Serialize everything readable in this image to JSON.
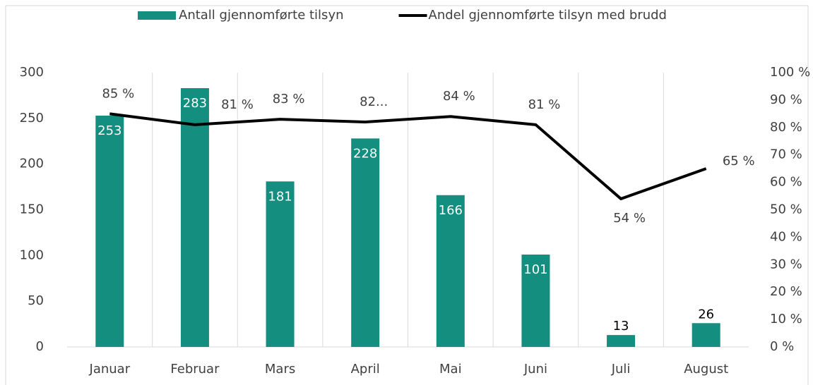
{
  "chart_data": {
    "type": "bar-line",
    "categories": [
      "Januar",
      "Februar",
      "Mars",
      "April",
      "Mai",
      "Juni",
      "Juli",
      "August"
    ],
    "series": [
      {
        "name": "Antall gjennomførte tilsyn",
        "type": "bar",
        "color": "#138e7f",
        "values": [
          253,
          283,
          181,
          228,
          166,
          101,
          13,
          26
        ]
      },
      {
        "name": "Andel gjennomførte tilsyn med brudd",
        "type": "line",
        "color": "#000000",
        "axis": "y2",
        "values": [
          85,
          81,
          83,
          82,
          84,
          81,
          54,
          65
        ],
        "value_labels": [
          "85 %",
          "81 %",
          "83 %",
          "82...",
          "84 %",
          "81 %",
          "54 %",
          "65 %"
        ]
      }
    ],
    "ylim": [
      0,
      300
    ],
    "yticks": [
      0,
      50,
      100,
      150,
      200,
      250,
      300
    ],
    "y2lim": [
      0,
      100
    ],
    "y2ticks": [
      {
        "value": 0,
        "label": "0 %"
      },
      {
        "value": 10,
        "label": "10 %"
      },
      {
        "value": 20,
        "label": "20 %"
      },
      {
        "value": 30,
        "label": "30 %"
      },
      {
        "value": 40,
        "label": "40 %"
      },
      {
        "value": 50,
        "label": "50 %"
      },
      {
        "value": 60,
        "label": "60 %"
      },
      {
        "value": 70,
        "label": "70 %"
      },
      {
        "value": 80,
        "label": "80 %"
      },
      {
        "value": 90,
        "label": "90 %"
      },
      {
        "value": 100,
        "label": "100 %"
      }
    ],
    "legend": "top"
  }
}
